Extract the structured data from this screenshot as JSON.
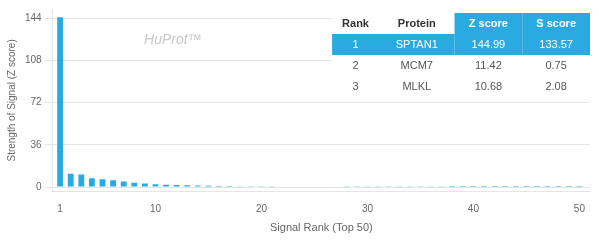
{
  "chart_data": {
    "type": "bar",
    "xlabel": "Signal Rank (Top 50)",
    "ylabel": "Strength of Signal (Z score)",
    "x": [
      1,
      2,
      3,
      4,
      5,
      6,
      7,
      8,
      9,
      10,
      11,
      12,
      13,
      14,
      15,
      16,
      17,
      18,
      19,
      20,
      21,
      22,
      23,
      24,
      25,
      26,
      27,
      28,
      29,
      30,
      31,
      32,
      33,
      34,
      35,
      36,
      37,
      38,
      39,
      40,
      41,
      42,
      43,
      44,
      45,
      46,
      47,
      48,
      49,
      50
    ],
    "values": [
      144.99,
      11.42,
      10.68,
      7.5,
      6.8,
      5.9,
      4.8,
      3.8,
      3.0,
      2.5,
      2.0,
      1.7,
      1.5,
      1.3,
      1.1,
      1.0,
      0.9,
      0.8,
      0.75,
      0.7,
      0.65,
      0.6,
      0.55,
      0.52,
      0.48,
      0.45,
      0.42,
      0.4,
      0.38,
      0.35,
      0.33,
      0.31,
      0.29,
      0.27,
      0.25,
      0.23,
      0.21,
      0.2,
      0.19,
      0.18,
      0.17,
      0.16,
      0.15,
      0.14,
      0.13,
      0.12,
      0.11,
      0.1,
      0.09,
      0.08
    ],
    "color": "#29abe2",
    "xlim": [
      0.3,
      51
    ],
    "ylim": [
      -4,
      152
    ],
    "xticks": [
      1,
      10,
      20,
      30,
      40,
      50
    ],
    "yticks": [
      0,
      36,
      72,
      108,
      144
    ],
    "grid": "y",
    "annotations": [
      "HuProt™"
    ],
    "table": {
      "header": [
        "Rank",
        "Protein",
        "Z score",
        "S score"
      ],
      "rows": [
        [
          "1",
          "SPTAN1",
          "144.99",
          "133.57"
        ],
        [
          "2",
          "MCM7",
          "11.42",
          "0.75"
        ],
        [
          "3",
          "MLKL",
          "10.68",
          "2.08"
        ]
      ]
    }
  }
}
